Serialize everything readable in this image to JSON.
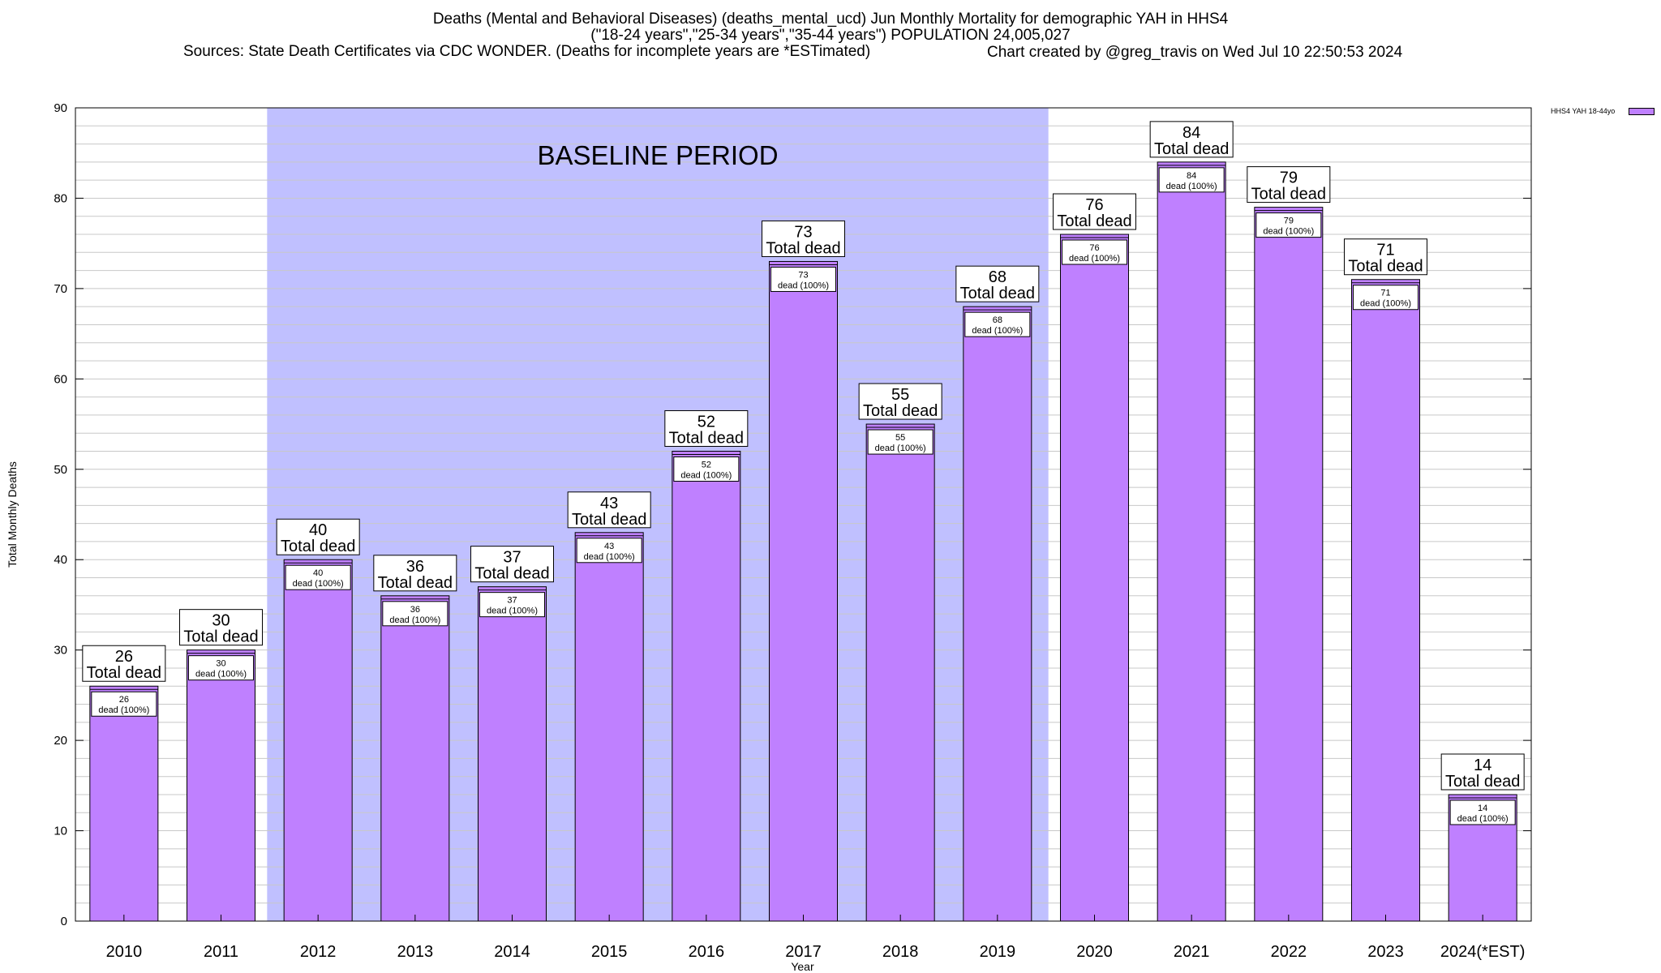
{
  "chart_data": {
    "type": "bar",
    "title": "Deaths (Mental and Behavioral Diseases) (deaths_mental_ucd) Jun Monthly Mortality for demographic YAH in HHS4",
    "subtitle": "(\"18-24 years\",\"25-34 years\",\"35-44 years\") POPULATION 24,005,027",
    "source": "Sources: State Death Certificates via CDC WONDER. (Deaths for incomplete years are *ESTimated)",
    "credit": "Chart created by @greg_travis on Wed Jul 10 22:50:53 2024",
    "xlabel": "Year",
    "ylabel": "Total Monthly Deaths",
    "ylim": [
      0,
      90
    ],
    "y_ticks": [
      0,
      10,
      20,
      30,
      40,
      50,
      60,
      70,
      80,
      90
    ],
    "y_minor_step": 2,
    "grid": true,
    "legend": {
      "position": "top-right",
      "label": "HHS4 YAH 18-44yo"
    },
    "categories": [
      "2010",
      "2011",
      "2012",
      "2013",
      "2014",
      "2015",
      "2016",
      "2017",
      "2018",
      "2019",
      "2020",
      "2021",
      "2022",
      "2023",
      "2024(*EST)"
    ],
    "series": [
      {
        "name": "HHS4 YAH 18-44yo",
        "values": [
          26,
          30,
          40,
          36,
          37,
          43,
          52,
          73,
          55,
          68,
          76,
          84,
          79,
          71,
          14
        ]
      }
    ],
    "baseline": {
      "label": "BASELINE PERIOD",
      "from": "2012",
      "to": "2019"
    },
    "bar_label_text": "Total dead",
    "inner_label_text": "dead (100%)",
    "colors": {
      "bar": "#bf80ff",
      "baseline": "#c0c0ff",
      "grid": "#c8c8c8"
    }
  }
}
